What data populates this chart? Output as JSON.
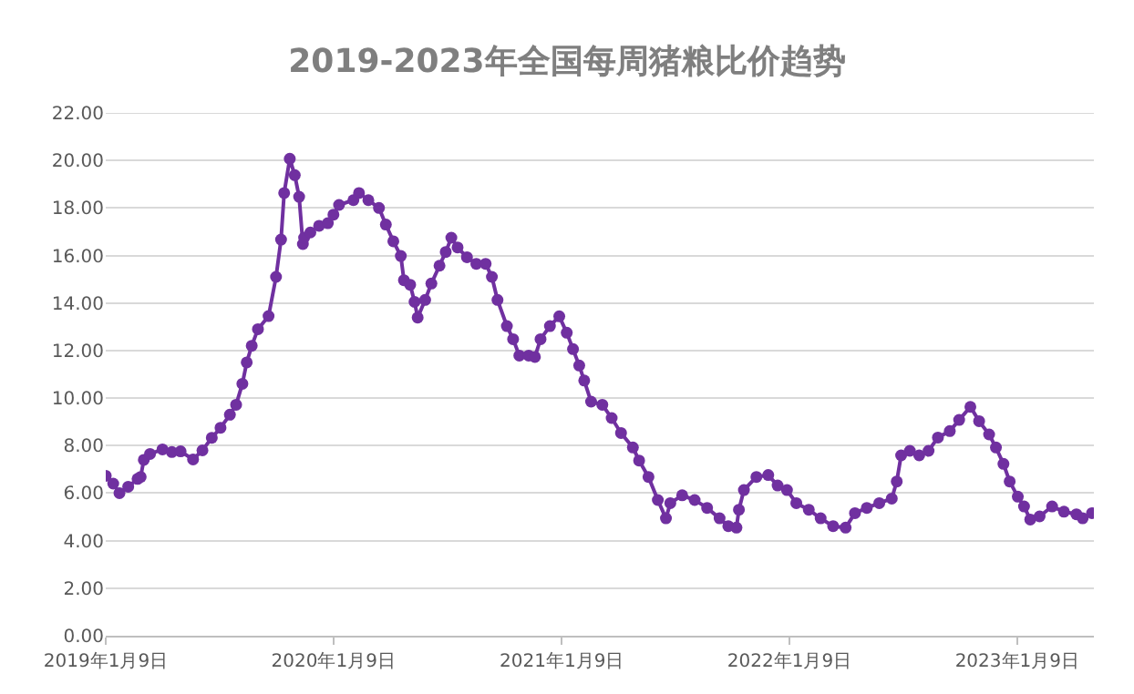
{
  "chart_data": {
    "type": "line",
    "title": "2019-2023年全国每周猪粮比价趋势",
    "x": [
      "2019-01-09",
      "2019-01-21",
      "2019-01-31",
      "2019-02-14",
      "2019-03-01",
      "2019-03-06",
      "2019-03-11",
      "2019-03-21",
      "2019-04-10",
      "2019-04-25",
      "2019-05-09",
      "2019-05-29",
      "2019-06-13",
      "2019-06-28",
      "2019-07-12",
      "2019-07-27",
      "2019-08-06",
      "2019-08-16",
      "2019-08-23",
      "2019-08-31",
      "2019-09-10",
      "2019-09-27",
      "2019-10-09",
      "2019-10-17",
      "2019-10-22",
      "2019-10-31",
      "2019-11-08",
      "2019-11-15",
      "2019-11-21",
      "2019-11-23",
      "2019-12-03",
      "2019-12-17",
      "2019-12-31",
      "2020-01-09",
      "2020-01-18",
      "2020-02-10",
      "2020-02-19",
      "2020-03-05",
      "2020-03-22",
      "2020-04-02",
      "2020-04-14",
      "2020-04-26",
      "2020-05-01",
      "2020-05-11",
      "2020-05-18",
      "2020-05-23",
      "2020-06-04",
      "2020-06-14",
      "2020-06-27",
      "2020-07-07",
      "2020-07-16",
      "2020-07-26",
      "2020-08-10",
      "2020-08-25",
      "2020-09-09",
      "2020-09-19",
      "2020-09-28",
      "2020-10-13",
      "2020-10-23",
      "2020-11-02",
      "2020-11-17",
      "2020-11-27",
      "2020-12-06",
      "2020-12-21",
      "2021-01-05",
      "2021-01-17",
      "2021-01-27",
      "2021-02-06",
      "2021-02-14",
      "2021-02-25",
      "2021-03-15",
      "2021-03-30",
      "2021-04-14",
      "2021-05-03",
      "2021-05-13",
      "2021-05-28",
      "2021-06-12",
      "2021-06-25",
      "2021-07-02",
      "2021-07-21",
      "2021-08-10",
      "2021-08-30",
      "2021-09-19",
      "2021-10-03",
      "2021-10-16",
      "2021-10-20",
      "2021-10-28",
      "2021-11-17",
      "2021-12-06",
      "2021-12-21",
      "2022-01-05",
      "2022-01-20",
      "2022-02-09",
      "2022-02-28",
      "2022-03-20",
      "2022-04-09",
      "2022-04-24",
      "2022-05-13",
      "2022-06-02",
      "2022-06-22",
      "2022-06-30",
      "2022-07-07",
      "2022-07-21",
      "2022-08-05",
      "2022-08-20",
      "2022-09-04",
      "2022-09-23",
      "2022-10-08",
      "2022-10-26",
      "2022-11-09",
      "2022-11-25",
      "2022-12-06",
      "2022-12-18",
      "2022-12-28",
      "2023-01-10",
      "2023-01-20",
      "2023-01-30",
      "2023-02-14",
      "2023-03-06",
      "2023-03-25",
      "2023-04-14",
      "2023-04-24",
      "2023-05-09"
    ],
    "series": [
      {
        "color": "#7030a0",
        "values": [
          6.73,
          6.4,
          6.0,
          6.27,
          6.6,
          6.68,
          7.4,
          7.65,
          7.84,
          7.73,
          7.76,
          7.42,
          7.8,
          8.33,
          8.75,
          9.3,
          9.72,
          10.6,
          11.5,
          12.2,
          12.9,
          13.45,
          15.1,
          16.67,
          18.63,
          20.07,
          19.38,
          18.47,
          16.48,
          16.75,
          16.97,
          17.25,
          17.36,
          17.72,
          18.13,
          18.33,
          18.63,
          18.33,
          18.0,
          17.3,
          16.6,
          15.98,
          14.96,
          14.77,
          14.05,
          13.39,
          14.13,
          14.82,
          15.57,
          16.15,
          16.75,
          16.34,
          15.93,
          15.65,
          15.65,
          15.1,
          14.13,
          13.03,
          12.48,
          11.79,
          11.79,
          11.73,
          12.48,
          13.03,
          13.44,
          12.75,
          12.06,
          11.37,
          10.74,
          9.85,
          9.72,
          9.16,
          8.53,
          7.92,
          7.37,
          6.68,
          5.71,
          4.94,
          5.58,
          5.91,
          5.71,
          5.38,
          4.94,
          4.61,
          4.55,
          5.3,
          6.13,
          6.68,
          6.76,
          6.32,
          6.13,
          5.58,
          5.3,
          4.94,
          4.61,
          4.55,
          5.16,
          5.38,
          5.58,
          5.77,
          6.49,
          7.59,
          7.78,
          7.59,
          7.78,
          8.34,
          8.61,
          9.08,
          9.63,
          9.03,
          8.47,
          7.92,
          7.23,
          6.49,
          5.85,
          5.44,
          4.89,
          5.02,
          5.44,
          5.22,
          5.11,
          4.94,
          5.16
        ]
      }
    ],
    "xlim": [
      "2019-01-09",
      "2023-05-12"
    ],
    "xticks": [
      {
        "value": "2019-01-09",
        "label": "2019年1月9日"
      },
      {
        "value": "2020-01-09",
        "label": "2020年1月9日"
      },
      {
        "value": "2021-01-09",
        "label": "2021年1月9日"
      },
      {
        "value": "2022-01-09",
        "label": "2022年1月9日"
      },
      {
        "value": "2023-01-09",
        "label": "2023年1月9日"
      }
    ],
    "ylim": [
      0,
      22
    ],
    "yticks": [
      {
        "value": 0,
        "label": "0.00"
      },
      {
        "value": 2,
        "label": "2.00"
      },
      {
        "value": 4,
        "label": "4.00"
      },
      {
        "value": 6,
        "label": "6.00"
      },
      {
        "value": 8,
        "label": "8.00"
      },
      {
        "value": 10,
        "label": "10.00"
      },
      {
        "value": 12,
        "label": "12.00"
      },
      {
        "value": 14,
        "label": "14.00"
      },
      {
        "value": 16,
        "label": "16.00"
      },
      {
        "value": 18,
        "label": "18.00"
      },
      {
        "value": 20,
        "label": "20.00"
      },
      {
        "value": 22,
        "label": "22.00"
      }
    ],
    "grid": "y",
    "marker": "circle",
    "line_style": "solid"
  }
}
